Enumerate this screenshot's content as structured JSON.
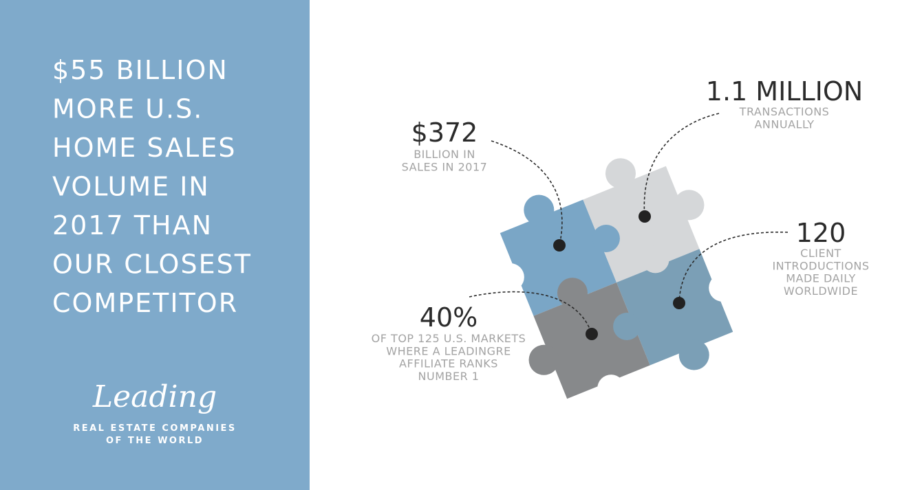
{
  "headline": {
    "lines": [
      "$55 BILLION",
      "MORE U.S.",
      "HOME SALES",
      "VOLUME IN",
      "2017 THAN",
      "OUR CLOSEST",
      "COMPETITOR"
    ]
  },
  "logo": {
    "script": "Leading",
    "line1": "REAL ESTATE COMPANIES",
    "line2": "OF THE WORLD"
  },
  "stats": [
    {
      "value": "$372",
      "description": [
        "BILLION IN",
        "SALES IN 2017"
      ]
    },
    {
      "value": "1.1 MILLION",
      "description": [
        "TRANSACTIONS",
        "ANNUALLY"
      ]
    },
    {
      "value": "120",
      "description": [
        "CLIENT",
        "INTRODUCTIONS",
        "MADE DAILY",
        "WORLDWIDE"
      ]
    },
    {
      "value": "40%",
      "description": [
        "OF TOP 125 U.S. MARKETS",
        "WHERE A LEADINGRE",
        "AFFILIATE RANKS",
        "NUMBER 1"
      ]
    }
  ]
}
